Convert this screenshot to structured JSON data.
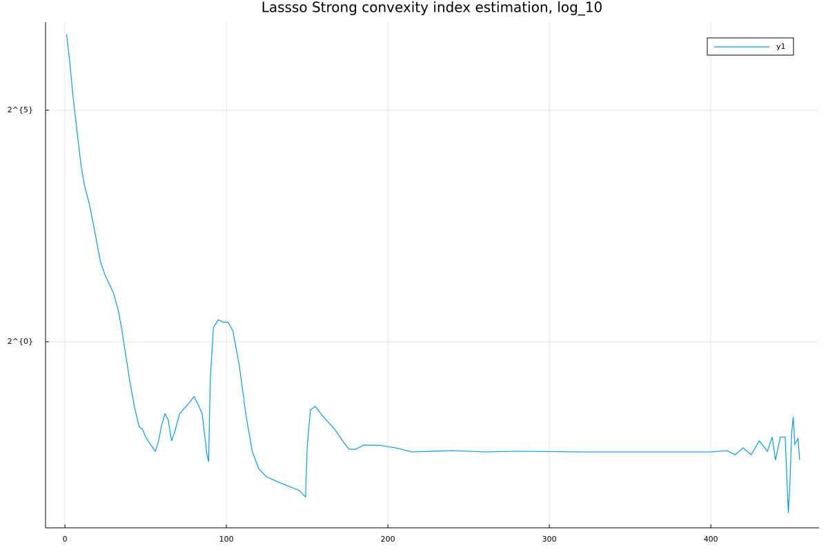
{
  "chart_data": {
    "type": "line",
    "title": "Lassso Strong convexity index estimation, log_10",
    "x": [
      1,
      3,
      5,
      8,
      10,
      12,
      15,
      18,
      22,
      25,
      28,
      30,
      33,
      35,
      38,
      40,
      43,
      46,
      48,
      50,
      53,
      56,
      58,
      60,
      62,
      64,
      66,
      68,
      71,
      74,
      77,
      80,
      83,
      85,
      88,
      89,
      90,
      92,
      95,
      98,
      101,
      104,
      108,
      112,
      116,
      120,
      125,
      135,
      145,
      149,
      150,
      152,
      155,
      160,
      167,
      172,
      176,
      180,
      185,
      195,
      205,
      215,
      240,
      260,
      280,
      320,
      380,
      400,
      410,
      415,
      420,
      425,
      430,
      435,
      438,
      440,
      443,
      446,
      448,
      449,
      450,
      451,
      452,
      454,
      455
    ],
    "series": [
      {
        "name": "y1",
        "color": "#009af9",
        "values": [
          99.5,
          65.9,
          39.4,
          21.1,
          14.0,
          10.5,
          7.95,
          5.54,
          3.31,
          2.69,
          2.31,
          2.08,
          1.61,
          1.24,
          0.78,
          0.57,
          0.38,
          0.28,
          0.27,
          0.24,
          0.215,
          0.194,
          0.227,
          0.29,
          0.34,
          0.31,
          0.227,
          0.26,
          0.34,
          0.37,
          0.4,
          0.44,
          0.38,
          0.34,
          0.184,
          0.166,
          0.57,
          1.24,
          1.39,
          1.34,
          1.34,
          1.18,
          0.7,
          0.34,
          0.194,
          0.15,
          0.132,
          0.119,
          0.108,
          0.098,
          0.204,
          0.36,
          0.38,
          0.325,
          0.27,
          0.227,
          0.2,
          0.2,
          0.213,
          0.212,
          0.204,
          0.192,
          0.196,
          0.192,
          0.194,
          0.192,
          0.192,
          0.192,
          0.196,
          0.184,
          0.204,
          0.184,
          0.227,
          0.194,
          0.24,
          0.17,
          0.24,
          0.24,
          0.077,
          0.122,
          0.25,
          0.325,
          0.215,
          0.235,
          0.17
        ]
      }
    ],
    "xlim": [
      -12,
      467
    ],
    "xticks": [
      0,
      100,
      200,
      300,
      400
    ],
    "ylim": [
      0.0617,
      119.8
    ],
    "yscale": "log2",
    "yticks": [
      {
        "value": 32,
        "label": "2^{5}"
      },
      {
        "value": 1,
        "label": "2^{0}"
      }
    ],
    "grid": true,
    "legend": "top-right"
  }
}
